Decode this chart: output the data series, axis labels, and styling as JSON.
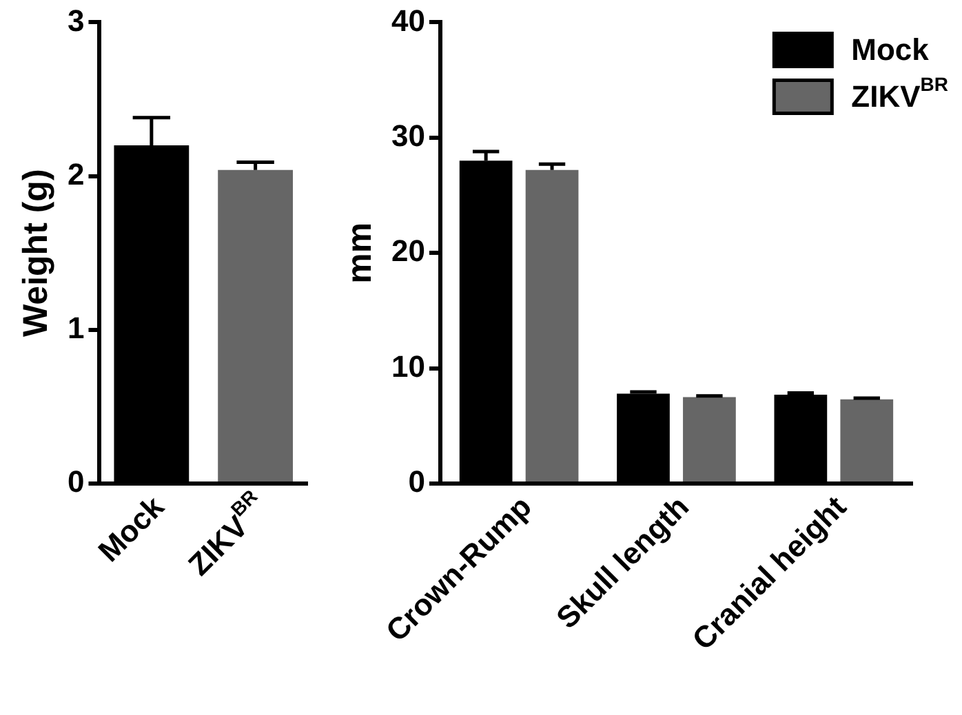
{
  "chart_data": [
    {
      "type": "bar",
      "ylabel": "Weight (g)",
      "categories": [
        "Mock",
        "ZIKV$^{BR}$"
      ],
      "values": [
        2.2,
        2.04
      ],
      "colors": [
        "#000000",
        "#666666"
      ],
      "errors": [
        0.18,
        0.05
      ],
      "ylim": [
        0,
        3
      ],
      "yticks": [
        0,
        1,
        2,
        3
      ],
      "grid": false,
      "legend": false
    },
    {
      "type": "bar",
      "ylabel": "mm",
      "categories": [
        "Crown-Rump",
        "Skull length",
        "Cranial height"
      ],
      "series": [
        {
          "name": "Mock",
          "color": "#000000",
          "values": [
            28,
            7.8,
            7.7
          ],
          "errors": [
            0.8,
            0.15,
            0.15
          ]
        },
        {
          "name": "ZIKV$^{BR}$",
          "color": "#666666",
          "values": [
            27.2,
            7.5,
            7.3
          ],
          "errors": [
            0.5,
            0.1,
            0.1
          ]
        }
      ],
      "ylim": [
        0,
        40
      ],
      "yticks": [
        0,
        10,
        20,
        30,
        40
      ],
      "grid": false,
      "legend": "top right"
    }
  ]
}
